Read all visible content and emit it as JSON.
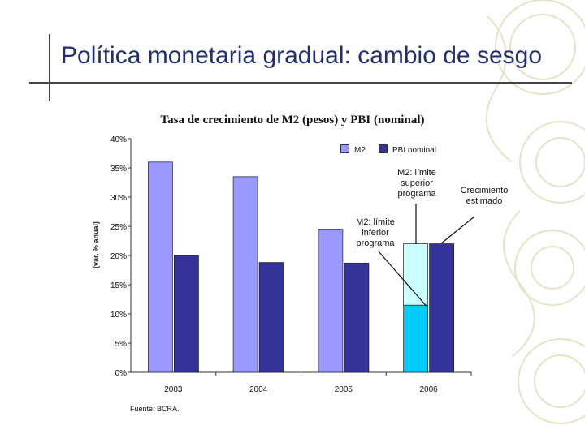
{
  "slide": {
    "title": "Política monetaria gradual: cambio de sesgo",
    "source": "Fuente: BCRA."
  },
  "colors": {
    "m2": "#9999ff",
    "pbi": "#333399",
    "m2_lower_2006": "#00ccff",
    "m2_upper_2006": "#ccffff",
    "title_text": "#1f2f6e"
  },
  "annotations": {
    "upper": "M2: límite\nsuperior\nprograma",
    "lower": "M2: límite\ninferior\nprograma",
    "growth": "Crecimiento\nestimado"
  },
  "chart_data": {
    "type": "bar",
    "title": "Tasa de crecimiento de M2 (pesos) y PBI (nominal)",
    "xlabel": "",
    "ylabel": "(var. % anual)",
    "categories": [
      "2003",
      "2004",
      "2005",
      "2006"
    ],
    "series": [
      {
        "name": "M2",
        "values": [
          36,
          33.5,
          24.5,
          22
        ]
      },
      {
        "name": "PBI nominal",
        "values": [
          20,
          18.8,
          18.7,
          22
        ]
      }
    ],
    "m2_2006_program": {
      "lower_limit": 11.5,
      "upper_limit": 22
    },
    "ylim": [
      0,
      40
    ],
    "yticks": [
      "0%",
      "5%",
      "10%",
      "15%",
      "20%",
      "25%",
      "30%",
      "35%",
      "40%"
    ],
    "legend_placement": "top-right",
    "grid": false
  }
}
